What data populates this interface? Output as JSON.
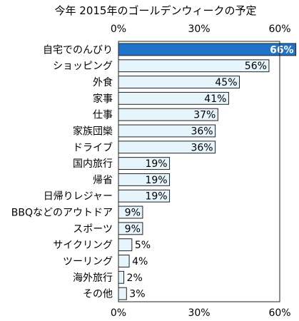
{
  "chart_data": {
    "type": "bar",
    "orientation": "horizontal",
    "title": "今年 2015年のゴールデンウィークの予定",
    "categories": [
      "自宅でのんびり",
      "ショッピング",
      "外食",
      "家事",
      "仕事",
      "家族団欒",
      "ドライブ",
      "国内旅行",
      "帰省",
      "日帰りレジャー",
      "BBQなどのアウトドア",
      "スポーツ",
      "サイクリング",
      "ツーリング",
      "海外旅行",
      "その他"
    ],
    "values": [
      66,
      56,
      45,
      41,
      37,
      36,
      36,
      19,
      19,
      19,
      9,
      9,
      5,
      4,
      2,
      3
    ],
    "value_labels": [
      "66%",
      "56%",
      "45%",
      "41%",
      "37%",
      "36%",
      "36%",
      "19%",
      "19%",
      "19%",
      "9%",
      "9%",
      "5%",
      "4%",
      "2%",
      "3%"
    ],
    "xlim": [
      0,
      60
    ],
    "x_ticks": [
      "0%",
      "30%",
      "60%"
    ],
    "highlight_index": 0,
    "colors": {
      "highlight_fill": "#1f74c9",
      "bar_fill": "#e6f4fc",
      "bar_stroke": "#222222",
      "highlight_label": "#ffffff",
      "label": "#000000"
    },
    "grid": false,
    "legend": "none"
  }
}
